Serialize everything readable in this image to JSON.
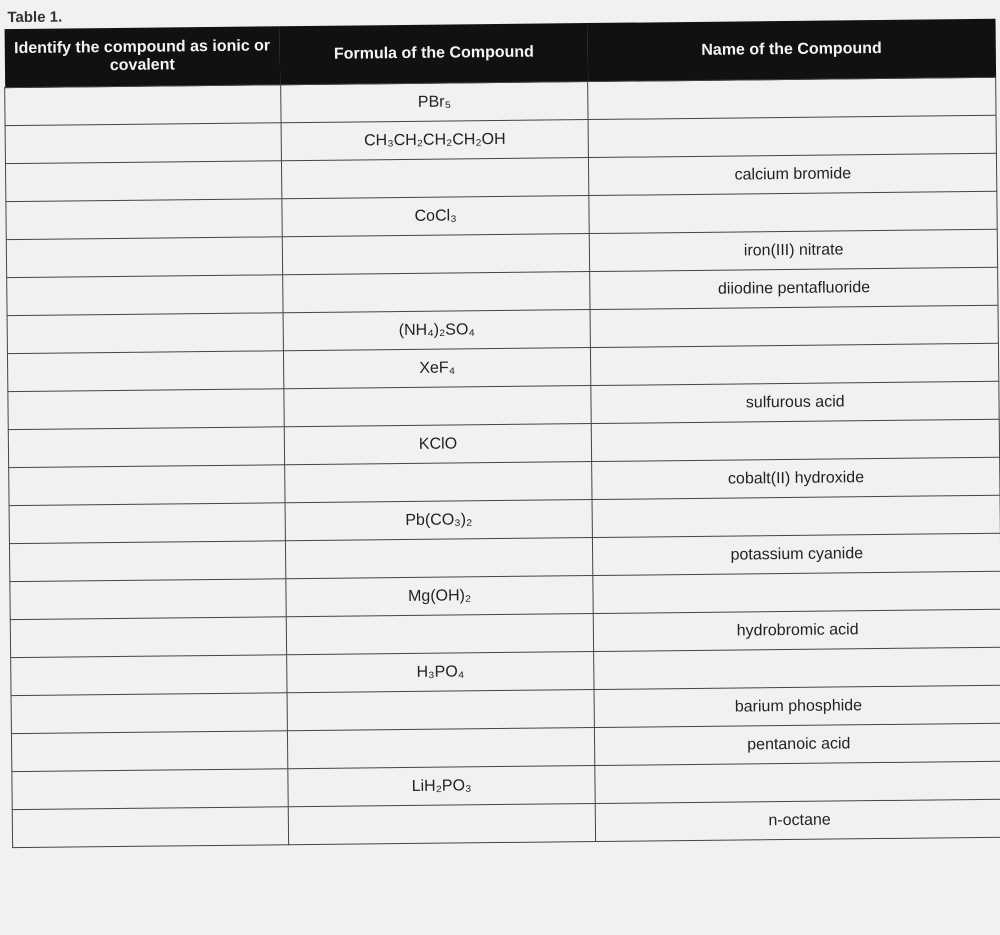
{
  "caption": "Table 1.",
  "headers": [
    "Identify the compound as ionic or covalent",
    "Formula of the Compound",
    "Name of the Compound"
  ],
  "rows": [
    {
      "type": "",
      "formula": "PBr₅",
      "name": ""
    },
    {
      "type": "",
      "formula": "CH₃CH₂CH₂CH₂OH",
      "name": ""
    },
    {
      "type": "",
      "formula": "",
      "name": "calcium bromide"
    },
    {
      "type": "",
      "formula": "CoCl₃",
      "name": ""
    },
    {
      "type": "",
      "formula": "",
      "name": "iron(III) nitrate"
    },
    {
      "type": "",
      "formula": "",
      "name": "diiodine pentafluoride"
    },
    {
      "type": "",
      "formula": "(NH₄)₂SO₄",
      "name": ""
    },
    {
      "type": "",
      "formula": "XeF₄",
      "name": ""
    },
    {
      "type": "",
      "formula": "",
      "name": "sulfurous acid"
    },
    {
      "type": "",
      "formula": "KClO",
      "name": ""
    },
    {
      "type": "",
      "formula": "",
      "name": "cobalt(II) hydroxide"
    },
    {
      "type": "",
      "formula": "Pb(CO₃)₂",
      "name": ""
    },
    {
      "type": "",
      "formula": "",
      "name": "potassium cyanide"
    },
    {
      "type": "",
      "formula": "Mg(OH)₂",
      "name": ""
    },
    {
      "type": "",
      "formula": "",
      "name": "hydrobromic acid"
    },
    {
      "type": "",
      "formula": "H₃PO₄",
      "name": ""
    },
    {
      "type": "",
      "formula": "",
      "name": "barium phosphide"
    },
    {
      "type": "",
      "formula": "",
      "name": "pentanoic acid"
    },
    {
      "type": "",
      "formula": "LiH₂PO₃",
      "name": ""
    },
    {
      "type": "",
      "formula": "",
      "name": "n-octane"
    }
  ]
}
